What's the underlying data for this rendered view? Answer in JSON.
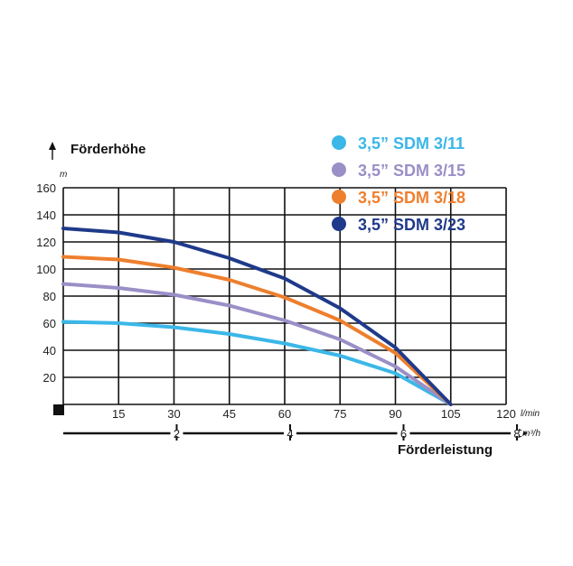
{
  "chart_data": {
    "type": "line",
    "ylabel": "Förderhöhe",
    "xlabel": "Förderleistung",
    "y_unit": "m",
    "x_unit": "l/min",
    "x2_unit": "m³/h",
    "xlim": [
      0,
      120
    ],
    "ylim": [
      0,
      160
    ],
    "x2lim": [
      0,
      8
    ],
    "x_ticks": [
      "15",
      "30",
      "45",
      "60",
      "75",
      "90",
      "105",
      "120"
    ],
    "y_ticks": [
      "20",
      "40",
      "60",
      "80",
      "100",
      "120",
      "140",
      "160"
    ],
    "x2_ticks": [
      "2",
      "4",
      "6",
      "8"
    ],
    "grid": true,
    "legend_position": "top-right",
    "series": [
      {
        "name": "3,5” SDM 3/11",
        "color": "#3bb7e8",
        "x": [
          0,
          15,
          30,
          45,
          60,
          75,
          90,
          105
        ],
        "y": [
          61,
          60,
          57,
          52,
          45,
          36,
          23,
          0
        ]
      },
      {
        "name": "3,5” SDM 3/15",
        "color": "#9b8fc7",
        "x": [
          0,
          15,
          30,
          45,
          60,
          75,
          90,
          105
        ],
        "y": [
          89,
          86,
          81,
          73,
          62,
          48,
          28,
          0
        ]
      },
      {
        "name": "3,5” SDM 3/18",
        "color": "#ee7f2d",
        "x": [
          0,
          15,
          30,
          45,
          60,
          75,
          90,
          105
        ],
        "y": [
          109,
          107,
          101,
          92,
          79,
          62,
          38,
          0
        ]
      },
      {
        "name": "3,5” SDM 3/23",
        "color": "#1f3a8a",
        "x": [
          0,
          15,
          30,
          45,
          60,
          75,
          90,
          105
        ],
        "y": [
          130,
          127,
          120,
          108,
          93,
          71,
          42,
          0
        ]
      }
    ]
  }
}
